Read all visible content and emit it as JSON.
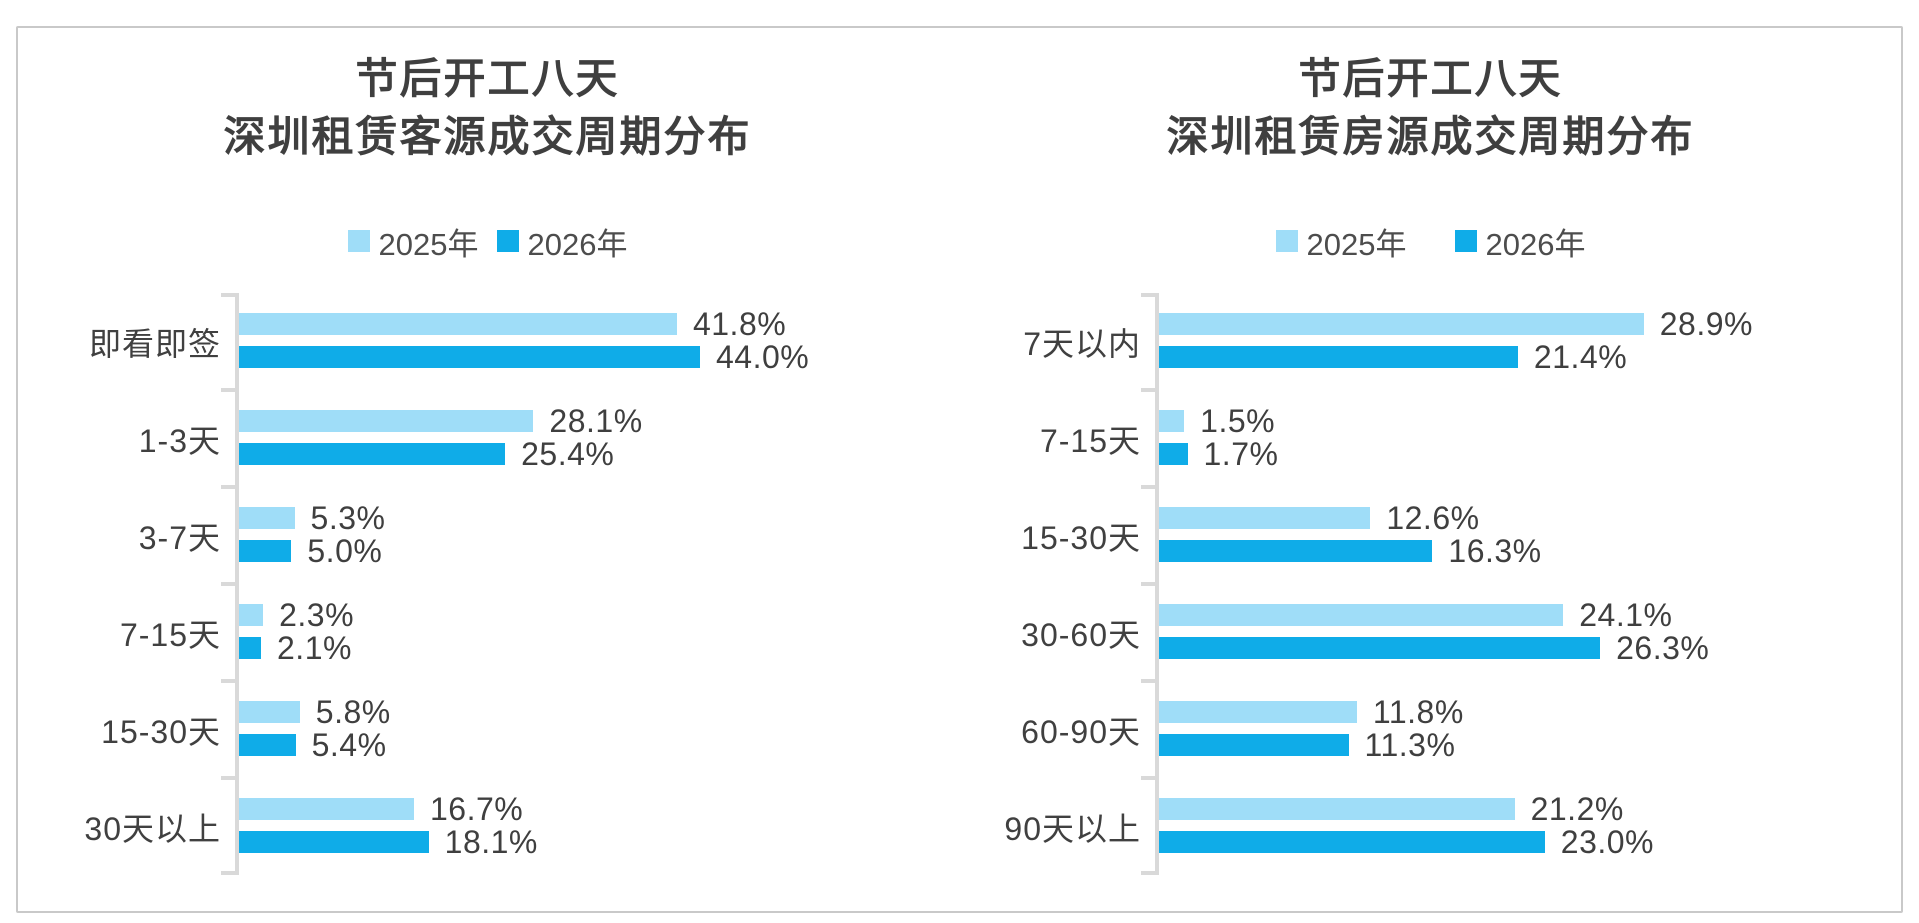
{
  "page": {
    "background": "#ffffff",
    "frame_border_color": "#c9c9c9"
  },
  "colors": {
    "series_2025": "#9fddf8",
    "series_2026": "#0face8",
    "axis": "#d9d9d9",
    "title_text": "#3f3f3f",
    "label_text": "#404040"
  },
  "chart_data": [
    {
      "type": "bar",
      "orientation": "horizontal",
      "title": "节后开工八天 深圳租赁客源成交周期分布",
      "title_lines": [
        "节后开工八天",
        "深圳租赁客源成交周期分布"
      ],
      "legend_position": "top",
      "value_suffix": "%",
      "xlim": [
        0,
        67
      ],
      "categories": [
        "即看即签",
        "1-3天",
        "3-7天",
        "7-15天",
        "15-30天",
        "30天以上"
      ],
      "series": [
        {
          "name": "2025年",
          "color": "#9fddf8",
          "values": [
            41.8,
            28.1,
            5.3,
            2.3,
            5.8,
            16.7
          ]
        },
        {
          "name": "2026年",
          "color": "#0face8",
          "values": [
            44.0,
            25.4,
            5.0,
            2.1,
            5.4,
            18.1
          ]
        }
      ]
    },
    {
      "type": "bar",
      "orientation": "horizontal",
      "title": "节后开工八天 深圳租赁房源成交周期分布",
      "title_lines": [
        "节后开工八天",
        "深圳租赁房源成交周期分布"
      ],
      "legend_position": "top",
      "value_suffix": "%",
      "xlim": [
        0,
        44
      ],
      "categories": [
        "7天以内",
        "7-15天",
        "15-30天",
        "30-60天",
        "60-90天",
        "90天以上"
      ],
      "series": [
        {
          "name": "2025年",
          "color": "#9fddf8",
          "values": [
            28.9,
            1.5,
            12.6,
            24.1,
            11.8,
            21.2
          ]
        },
        {
          "name": "2026年",
          "color": "#0face8",
          "values": [
            21.4,
            1.7,
            16.3,
            26.3,
            11.3,
            23.0
          ]
        }
      ]
    }
  ]
}
